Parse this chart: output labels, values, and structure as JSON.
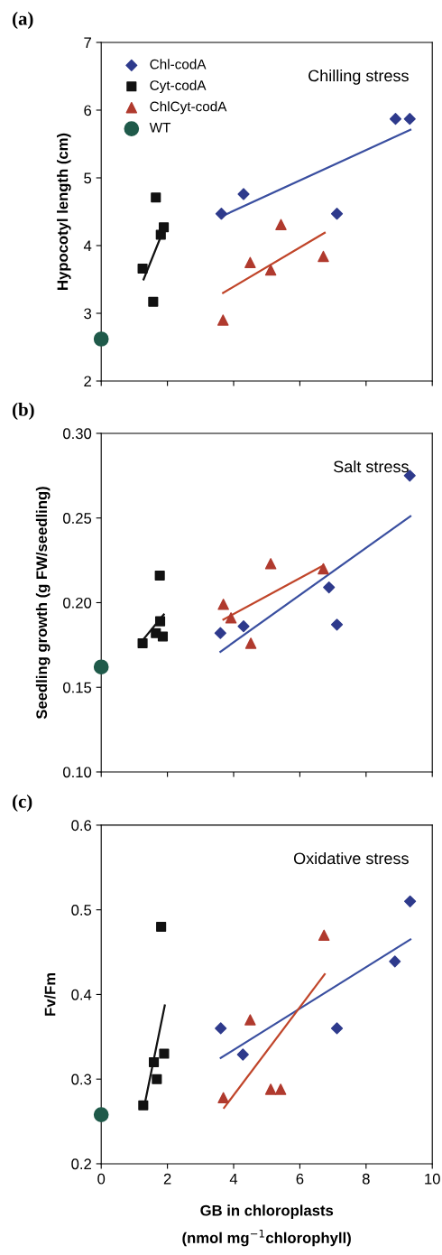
{
  "chart_data": [
    {
      "type": "scatter",
      "title": "(a)",
      "ylabel": "Hypocotyl length (cm)",
      "annotations": [
        "Chilling stress"
      ],
      "legend": "top left",
      "grid": false,
      "tick_labels": "y",
      "xlim": [
        0,
        10
      ],
      "xticks": [
        0,
        2,
        4,
        6,
        8,
        10
      ],
      "ylim": [
        2,
        7
      ],
      "yticks": [
        2,
        3,
        4,
        5,
        6,
        7
      ],
      "series": [
        {
          "name": "Chl-codA",
          "color": "#2e3a8c",
          "marker": "diamond",
          "x": [
            3.63,
            4.3,
            7.12,
            8.89,
            9.32
          ],
          "values": [
            4.47,
            4.76,
            4.47,
            5.87,
            5.87
          ]
        },
        {
          "name": "Cyt-codA",
          "color": "#111111",
          "marker": "square",
          "x": [
            1.25,
            1.65,
            1.57,
            1.8,
            1.89
          ],
          "values": [
            3.66,
            4.71,
            3.17,
            4.16,
            4.27
          ]
        },
        {
          "name": "ChlCyt-codA",
          "color": "#b03a2e",
          "marker": "triangle",
          "x": [
            3.68,
            4.5,
            5.12,
            5.43,
            6.71
          ],
          "values": [
            2.9,
            3.75,
            3.64,
            4.31,
            3.84
          ]
        },
        {
          "name": "WT",
          "color": "#1f5a4a",
          "marker": "circle",
          "x": [
            0
          ],
          "values": [
            2.62
          ]
        },
        {
          "type": "line",
          "color": "#3a4fa0",
          "x": [
            3.63,
            9.34
          ],
          "values": [
            4.43,
            5.71
          ]
        },
        {
          "type": "line",
          "color": "#111111",
          "x": [
            1.28,
            1.79
          ],
          "values": [
            3.5,
            4.12
          ]
        },
        {
          "type": "line",
          "color": "#c0452a",
          "x": [
            3.68,
            6.75
          ],
          "values": [
            3.3,
            4.19
          ]
        }
      ]
    },
    {
      "type": "scatter",
      "title": "(b)",
      "ylabel": "Seedling growth (g FW/seedling)",
      "annotations": [
        "Salt stress"
      ],
      "grid": false,
      "tick_labels": "y",
      "xlim": [
        0,
        10
      ],
      "xticks": [
        0,
        2,
        4,
        6,
        8,
        10
      ],
      "ylim": [
        0.1,
        0.3
      ],
      "yticks": [
        {
          "value": 0.1,
          "label": "0.10"
        },
        0.15,
        {
          "value": 0.2,
          "label": "0.20"
        },
        0.25,
        {
          "value": 0.3,
          "label": "0.30"
        }
      ],
      "series": [
        {
          "color": "#2e3a8c",
          "marker": "diamond",
          "x": [
            3.6,
            4.3,
            6.88,
            7.12,
            9.32
          ],
          "values": [
            0.182,
            0.186,
            0.209,
            0.187,
            0.275
          ]
        },
        {
          "color": "#111111",
          "marker": "square",
          "x": [
            1.25,
            1.77,
            1.65,
            1.78,
            1.86
          ],
          "values": [
            0.176,
            0.216,
            0.182,
            0.189,
            0.18
          ]
        },
        {
          "color": "#b03a2e",
          "marker": "triangle",
          "x": [
            3.69,
            3.92,
            4.52,
            5.12,
            6.71
          ],
          "values": [
            0.199,
            0.191,
            0.176,
            0.223,
            0.22
          ]
        },
        {
          "color": "#1f5a4a",
          "marker": "circle",
          "x": [
            0
          ],
          "values": [
            0.162
          ]
        },
        {
          "type": "line",
          "color": "#3a4fa0",
          "x": [
            3.6,
            9.34
          ],
          "values": [
            0.171,
            0.251
          ]
        },
        {
          "type": "line",
          "color": "#111111",
          "x": [
            1.3,
            1.89
          ],
          "values": [
            0.179,
            0.193
          ]
        },
        {
          "type": "line",
          "color": "#c0452a",
          "x": [
            3.69,
            6.71
          ],
          "values": [
            0.19,
            0.222
          ]
        }
      ]
    },
    {
      "type": "scatter",
      "title": "(c)",
      "ylabel": "Fv/Fm",
      "xlabel": "GB in chloroplasts\n(nmol mg$^{−1}$chlorophyll)",
      "annotations": [
        "Oxidative stress"
      ],
      "grid": false,
      "xlim": [
        0,
        10
      ],
      "xticks": [
        0,
        2,
        4,
        6,
        8,
        10
      ],
      "ylim": [
        0.2,
        0.6
      ],
      "yticks": [
        0.2,
        0.3,
        0.4,
        0.5,
        0.6
      ],
      "series": [
        {
          "color": "#2e3a8c",
          "marker": "diamond",
          "x": [
            3.61,
            4.28,
            7.12,
            8.87,
            9.33
          ],
          "values": [
            0.36,
            0.329,
            0.36,
            0.439,
            0.51
          ]
        },
        {
          "color": "#111111",
          "marker": "square",
          "x": [
            1.27,
            1.81,
            1.59,
            1.68,
            1.9
          ],
          "values": [
            0.269,
            0.48,
            0.32,
            0.3,
            0.33
          ]
        },
        {
          "color": "#b03a2e",
          "marker": "triangle",
          "x": [
            3.69,
            4.5,
            5.12,
            5.42,
            6.73
          ],
          "values": [
            0.278,
            0.37,
            0.288,
            0.288,
            0.47
          ]
        },
        {
          "color": "#1f5a4a",
          "marker": "circle",
          "x": [
            0
          ],
          "values": [
            0.258
          ]
        },
        {
          "type": "line",
          "color": "#3a4fa0",
          "x": [
            3.61,
            9.34
          ],
          "values": [
            0.325,
            0.465
          ]
        },
        {
          "type": "line",
          "color": "#111111",
          "x": [
            1.29,
            1.92
          ],
          "values": [
            0.266,
            0.387
          ]
        },
        {
          "type": "line",
          "color": "#c0452a",
          "x": [
            3.71,
            6.75
          ],
          "values": [
            0.266,
            0.424
          ]
        }
      ]
    }
  ]
}
